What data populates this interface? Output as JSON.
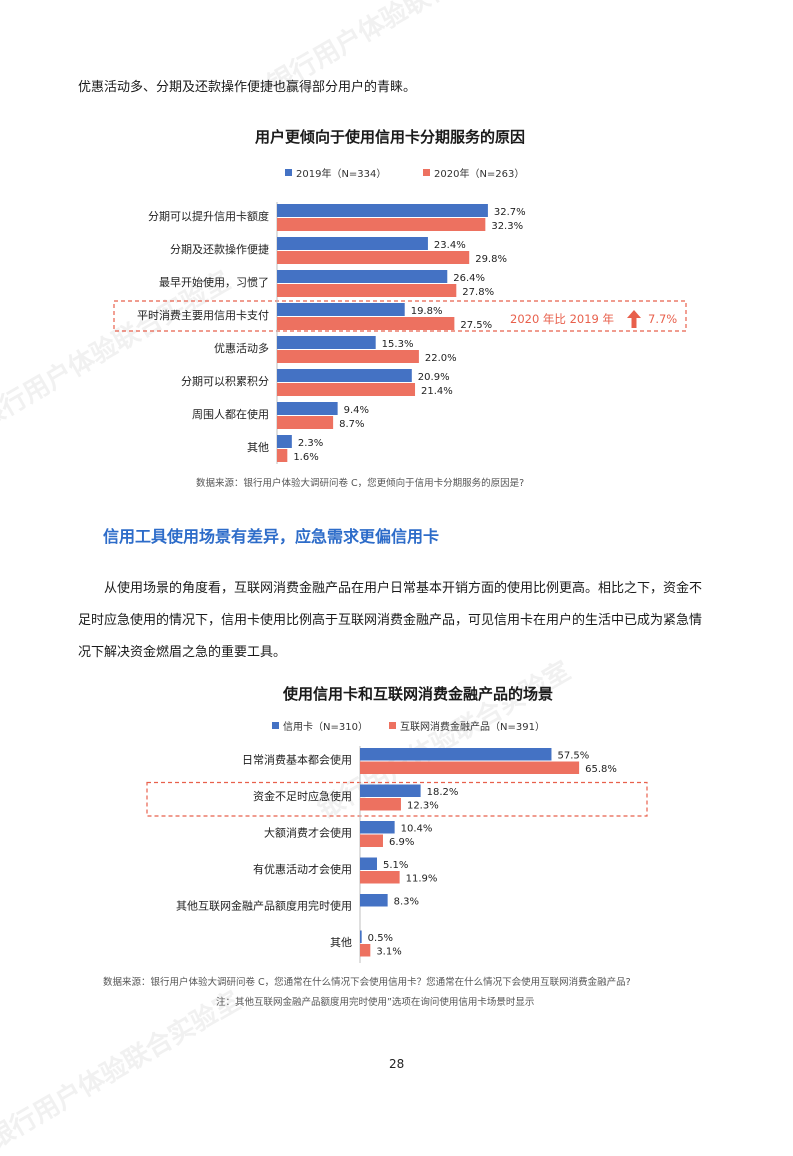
{
  "watermark": "银行用户体验联合实验室",
  "intro_line": "优惠活动多、分期及还款操作便捷也赢得部分用户的青睐。",
  "chart1": {
    "title": "用户更倾向于使用信用卡分期服务的原因",
    "legend": [
      "2019年（N=334）",
      "2020年（N=263）"
    ],
    "callout": {
      "text": "2020 年比 2019 年",
      "value": "7.7%",
      "arrow_color": "#e8604c"
    },
    "source": "数据来源：银行用户体验大调研问卷 C，您更倾向于信用卡分期服务的原因是?"
  },
  "section_heading": "信用工具使用场景有差异，应急需求更偏信用卡",
  "body_lines": [
    "从使用场景的角度看，互联网消费金融产品在用户日常基本开销方面的使用比例更高。相比之下，资金不",
    "足时应急使用的情况下，信用卡使用比例高于互联网消费金融产品，可见信用卡在用户的生活中已成为紧急情",
    "况下解决资金燃眉之急的重要工具。"
  ],
  "chart2": {
    "title": "使用信用卡和互联网消费金融产品的场景",
    "legend": [
      "信用卡（N=310）",
      "互联网消费金融产品（N=391）"
    ],
    "source": "数据来源：银行用户体验大调研问卷 C，您通常在什么情况下会使用信用卡？您通常在什么情况下会使用互联网消费金融产品?",
    "note": "注：其他互联网金融产品额度用完时使用”选项在询问使用信用卡场景时显示"
  },
  "page_number": "28",
  "chart_data": [
    {
      "type": "bar",
      "orientation": "horizontal",
      "title": "用户更倾向于使用信用卡分期服务的原因",
      "categories": [
        "分期可以提升信用卡额度",
        "分期及还款操作便捷",
        "最早开始使用，习惯了",
        "平时消费主要用信用卡支付",
        "优惠活动多",
        "分期可以积累积分",
        "周围人都在使用",
        "其他"
      ],
      "series": [
        {
          "name": "2019年（N=334）",
          "color": "#4472c4",
          "values": [
            32.7,
            23.4,
            26.4,
            19.8,
            15.3,
            20.9,
            9.4,
            2.3
          ],
          "labels": [
            "32.7%",
            "23.4%",
            "26.4%",
            "19.8%",
            "15.3%",
            "20.9%",
            "9.4%",
            "2.3%"
          ]
        },
        {
          "name": "2020年（N=263）",
          "color": "#ed7160",
          "values": [
            32.3,
            29.8,
            27.8,
            27.5,
            22.0,
            21.4,
            8.7,
            1.6
          ],
          "labels": [
            "32.3%",
            "29.8%",
            "27.8%",
            "27.5%",
            "22.0%",
            "21.4%",
            "8.7%",
            "1.6%"
          ]
        }
      ],
      "highlight_category": "平时消费主要用信用卡支付",
      "unit": "%"
    },
    {
      "type": "bar",
      "orientation": "horizontal",
      "title": "使用信用卡和互联网消费金融产品的场景",
      "categories": [
        "日常消费基本都会使用",
        "资金不足时应急使用",
        "大额消费才会使用",
        "有优惠活动才会使用",
        "其他互联网金融产品额度用完时使用",
        "其他"
      ],
      "series": [
        {
          "name": "信用卡（N=310）",
          "color": "#4472c4",
          "values": [
            57.5,
            18.2,
            10.4,
            5.1,
            8.3,
            0.5
          ],
          "labels": [
            "57.5%",
            "18.2%",
            "10.4%",
            "5.1%",
            "8.3%",
            "0.5%"
          ]
        },
        {
          "name": "互联网消费金融产品（N=391）",
          "color": "#ed7160",
          "values": [
            65.8,
            12.3,
            6.9,
            11.9,
            null,
            3.1
          ],
          "labels": [
            "65.8%",
            "12.3%",
            "6.9%",
            "11.9%",
            "",
            "3.1%"
          ]
        }
      ],
      "highlight_category": "资金不足时应急使用",
      "unit": "%"
    }
  ]
}
